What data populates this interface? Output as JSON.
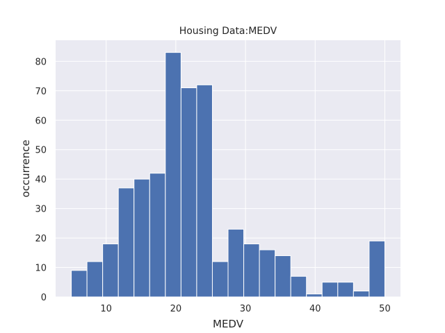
{
  "chart_data": {
    "type": "bar",
    "title": "Housing Data:MEDV",
    "xlabel": "MEDV",
    "ylabel": "occurrence",
    "xlim": [
      2.75,
      52.25
    ],
    "ylim": [
      0,
      87.15
    ],
    "xticks": [
      10,
      20,
      30,
      40,
      50
    ],
    "yticks": [
      0,
      10,
      20,
      30,
      40,
      50,
      60,
      70,
      80
    ],
    "grid": true,
    "bin_edges": [
      5.0,
      7.25,
      9.5,
      11.75,
      14.0,
      16.25,
      18.5,
      20.75,
      23.0,
      25.25,
      27.5,
      29.75,
      32.0,
      34.25,
      36.5,
      38.75,
      41.0,
      43.25,
      45.5,
      47.75,
      50.0
    ],
    "values": [
      9,
      12,
      18,
      37,
      40,
      42,
      83,
      71,
      72,
      12,
      23,
      18,
      16,
      14,
      7,
      1,
      5,
      5,
      2,
      19
    ]
  },
  "colors": {
    "bar": "#4c72b0",
    "plot_background": "#eaeaf2",
    "grid": "#ffffff"
  }
}
